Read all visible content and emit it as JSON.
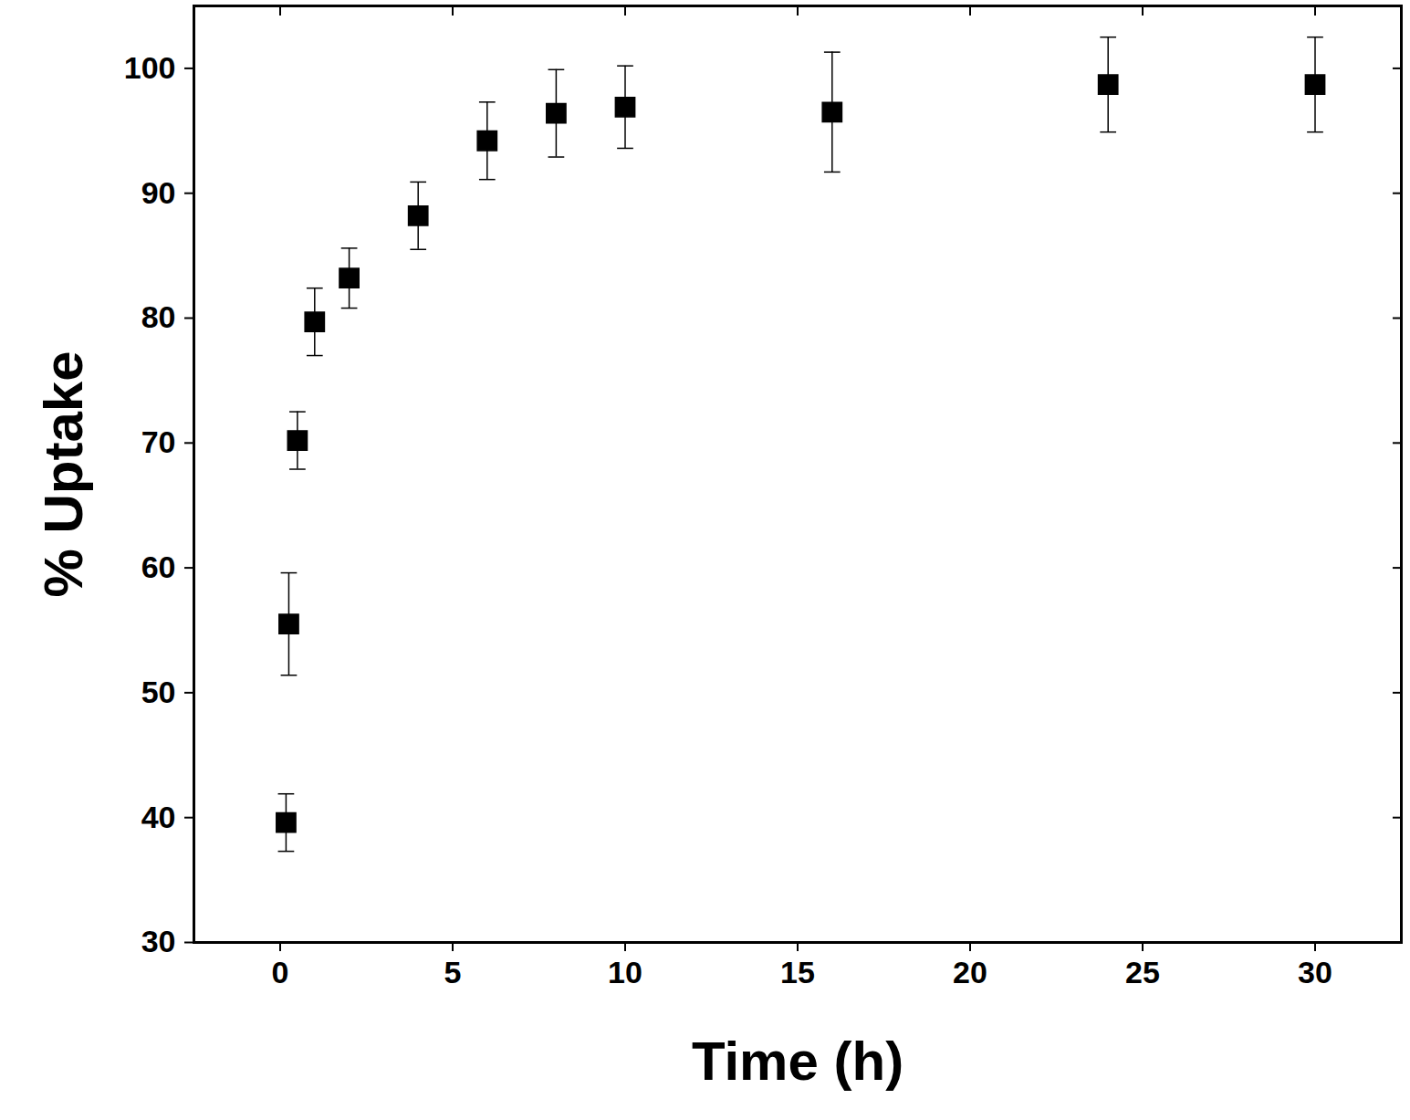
{
  "chart_data": {
    "type": "scatter",
    "x_label": "Time (h)",
    "y_label": "% Uptake",
    "x": [
      0.17,
      0.25,
      0.5,
      1,
      2,
      4,
      6,
      8,
      10,
      16,
      24,
      30
    ],
    "values": [
      39.6,
      55.5,
      70.2,
      79.7,
      83.2,
      88.2,
      94.2,
      96.4,
      96.9,
      96.5,
      98.7,
      98.7
    ],
    "errors": [
      2.3,
      4.1,
      2.3,
      2.7,
      2.4,
      2.7,
      3.1,
      3.5,
      3.3,
      4.8,
      3.8,
      3.8
    ],
    "color": "#000000",
    "marker": "square",
    "xlim": [
      -2.5,
      32.5
    ],
    "xticks": [
      0,
      5,
      10,
      15,
      20,
      25,
      30
    ],
    "ylim": [
      30,
      105
    ],
    "yticks": [
      30,
      40,
      50,
      60,
      70,
      80,
      90,
      100
    ],
    "grid": false
  }
}
